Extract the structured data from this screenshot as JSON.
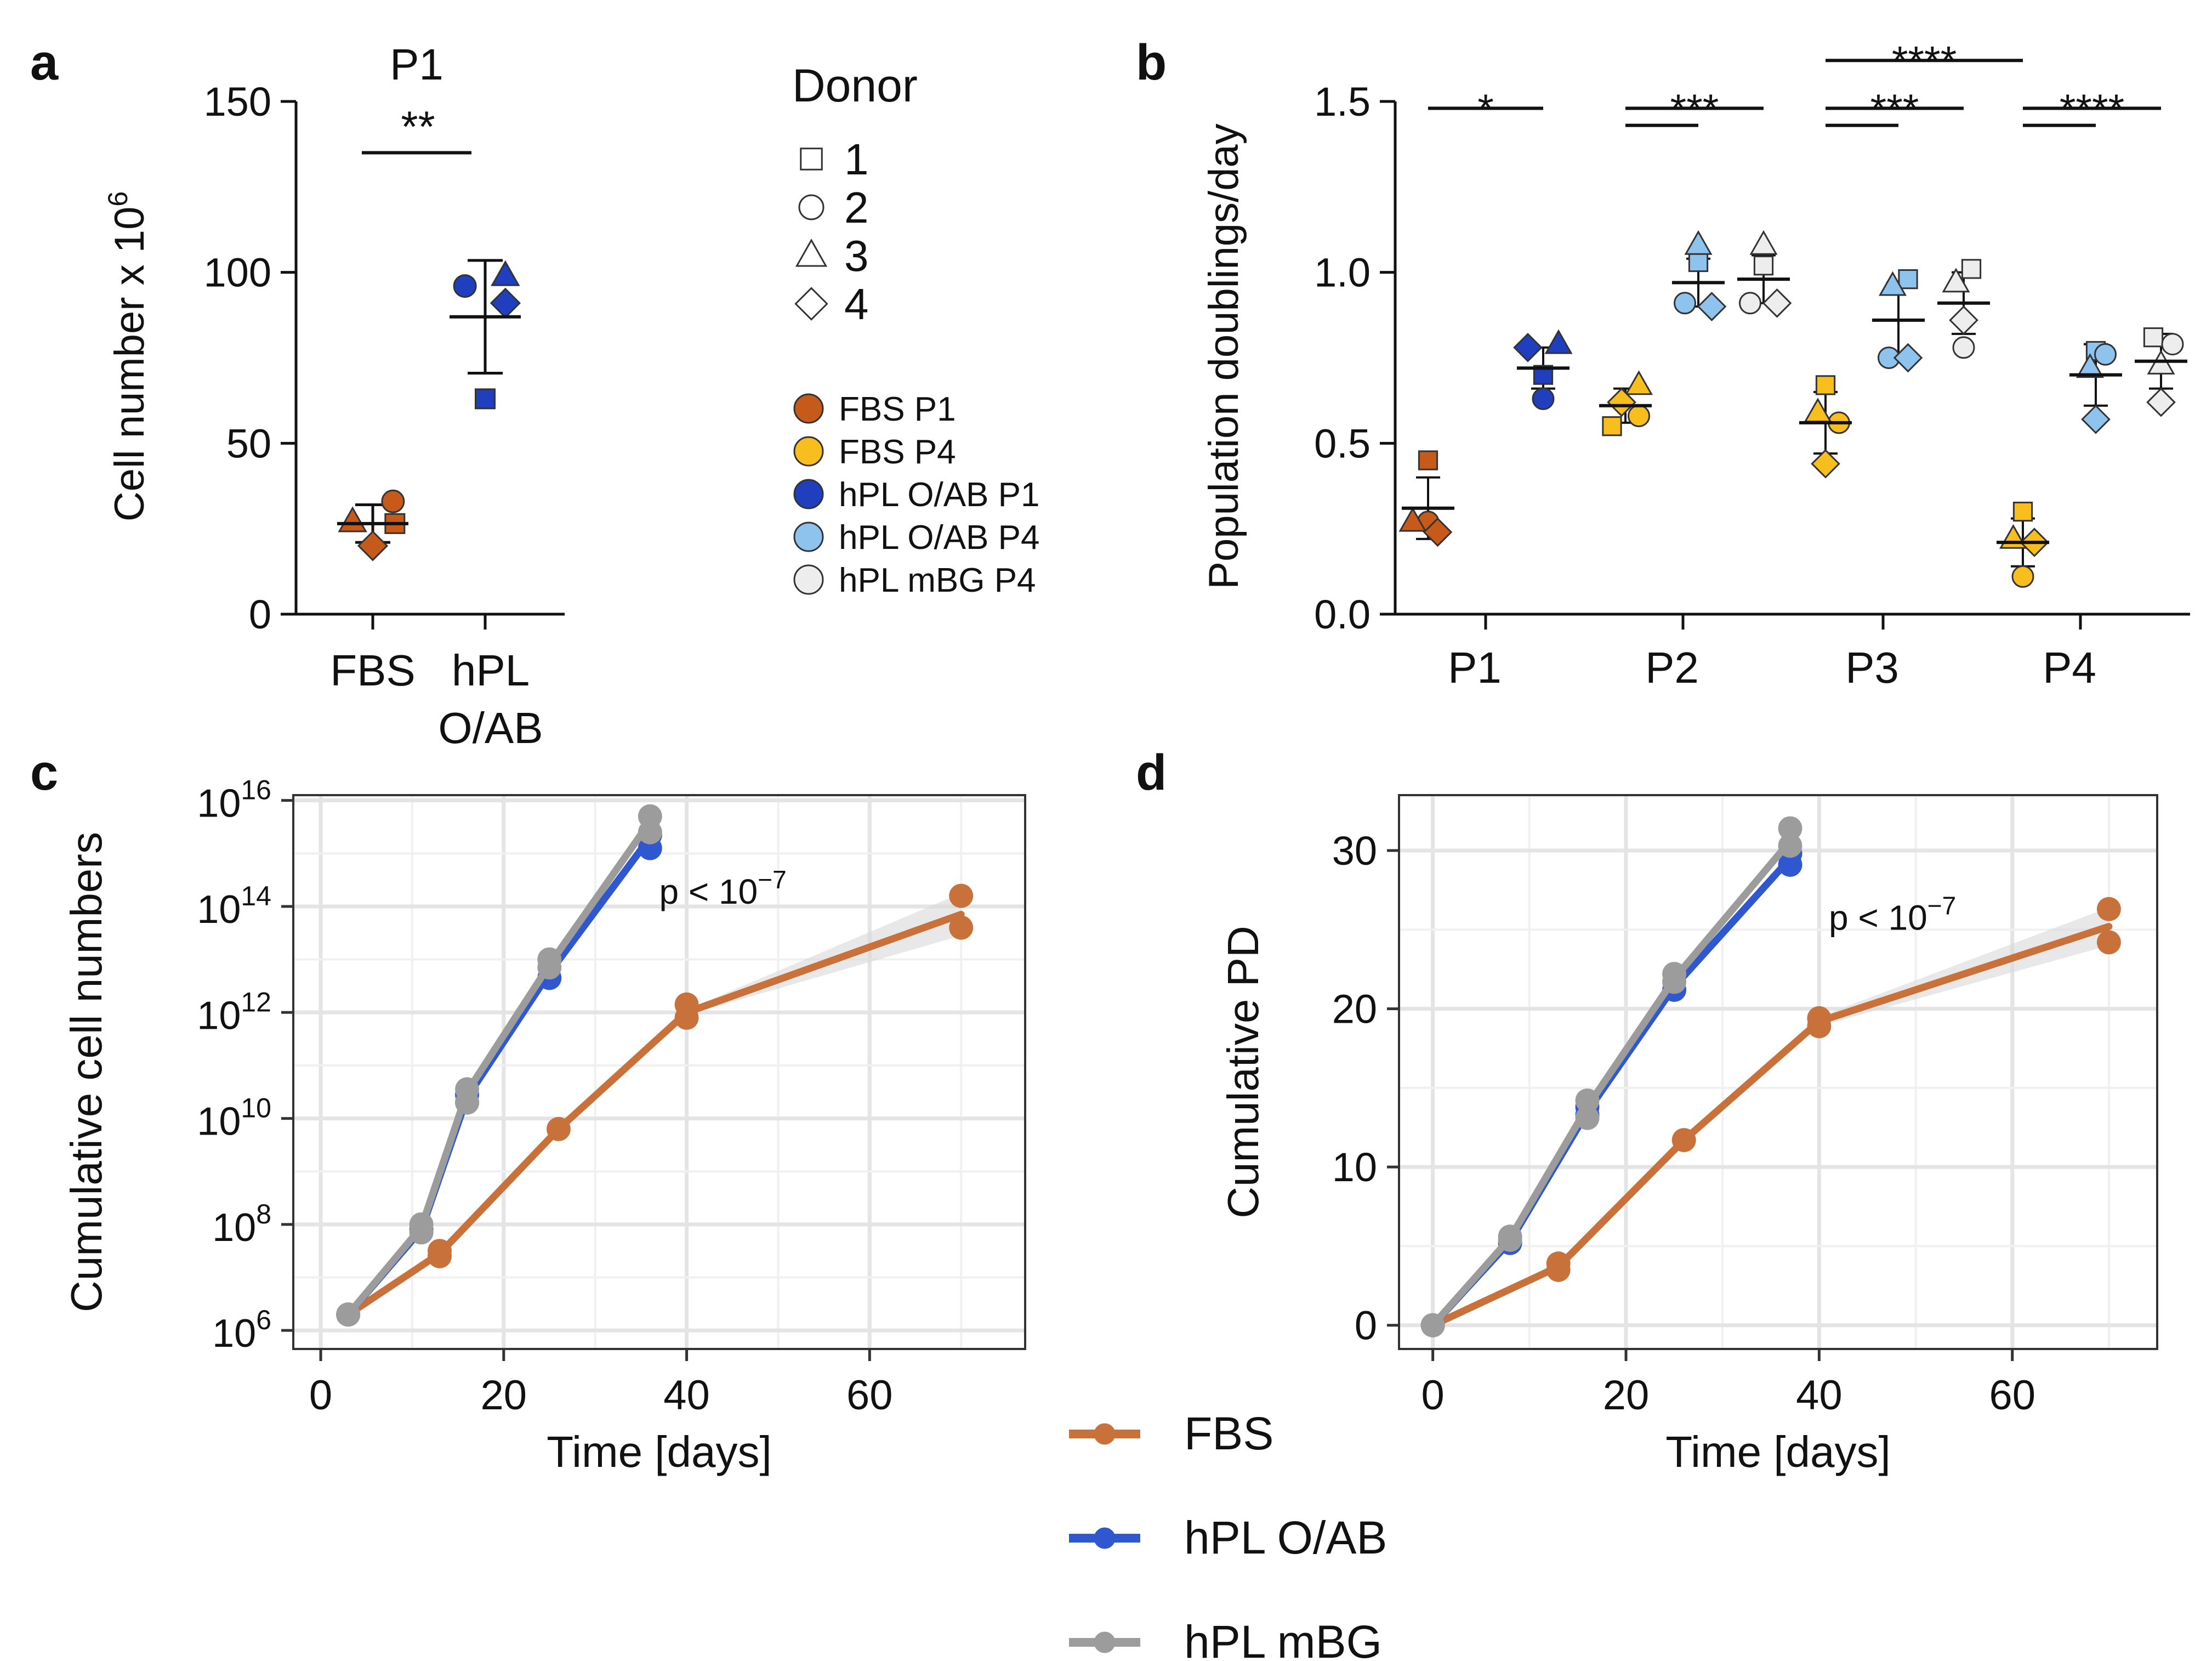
{
  "colors": {
    "fbs_p1": "#C55A1B",
    "fbs_p4": "#F7BE1D",
    "hpl_oab_p1": "#1F3FBF",
    "hpl_oab_p4": "#8EC3EE",
    "hpl_mbg_p4": "#EDEDED",
    "fbs_line": "#C8713A",
    "oab_line": "#2F58D0",
    "mbg_line": "#9C9C9C"
  },
  "panels": {
    "a": "a",
    "b": "b",
    "c": "c",
    "d": "d"
  },
  "donor_legend": {
    "title": "Donor",
    "items": [
      {
        "label": "1",
        "shape": "square"
      },
      {
        "label": "2",
        "shape": "circle"
      },
      {
        "label": "3",
        "shape": "triangle"
      },
      {
        "label": "4",
        "shape": "diamond"
      }
    ]
  },
  "group_legend": {
    "items": [
      {
        "label": "FBS P1",
        "color": "#C55A1B"
      },
      {
        "label": "FBS P4",
        "color": "#F7BE1D"
      },
      {
        "label": "hPL O/AB P1",
        "color": "#1F3FBF"
      },
      {
        "label": "hPL O/AB P4",
        "color": "#8EC3EE"
      },
      {
        "label": "hPL mBG P4",
        "color": "#EDEDED"
      }
    ]
  },
  "line_legend": {
    "items": [
      {
        "label": "FBS",
        "color": "#C8713A"
      },
      {
        "label": "hPL O/AB",
        "color": "#2F58D0"
      },
      {
        "label": "hPL mBG",
        "color": "#9C9C9C"
      }
    ]
  },
  "chart_data": [
    {
      "panel": "a",
      "type": "scatter",
      "title": "P1",
      "ylabel": "Cell number x 10",
      "ylabel_sup": "6",
      "ylim": [
        0,
        150
      ],
      "yticks": [
        0,
        50,
        100,
        150
      ],
      "categories": [
        "FBS",
        "hPL O/AB"
      ],
      "category_labels": [
        [
          "FBS"
        ],
        [
          "hPL",
          "O/AB"
        ]
      ],
      "groups": [
        {
          "name": "FBS",
          "color": "#C55A1B",
          "mean": 26.5,
          "sd": 5.5,
          "points": [
            {
              "donor": 1,
              "shape": "square",
              "value": 26.5,
              "offset": 0.35
            },
            {
              "donor": 2,
              "shape": "circle",
              "value": 33.0,
              "offset": 0.32
            },
            {
              "donor": 3,
              "shape": "triangle",
              "value": 27.0,
              "offset": -0.32
            },
            {
              "donor": 4,
              "shape": "diamond",
              "value": 20.0,
              "offset": 0.0
            }
          ]
        },
        {
          "name": "hPL O/AB",
          "color": "#1F3FBF",
          "mean": 87.0,
          "sd": 16.5,
          "points": [
            {
              "donor": 1,
              "shape": "square",
              "value": 63.0,
              "offset": 0.0
            },
            {
              "donor": 2,
              "shape": "circle",
              "value": 96.0,
              "offset": -0.32
            },
            {
              "donor": 3,
              "shape": "triangle",
              "value": 99.0,
              "offset": 0.32
            },
            {
              "donor": 4,
              "shape": "diamond",
              "value": 91.0,
              "offset": 0.32
            }
          ]
        }
      ],
      "significance": [
        {
          "from": 0,
          "to": 1,
          "label": "**",
          "y": 135
        }
      ]
    },
    {
      "panel": "b",
      "type": "scatter",
      "ylabel": "Population doublings/day",
      "ylim": [
        0.0,
        1.5
      ],
      "yticks": [
        "0.0",
        "0.5",
        "1.0",
        "1.5"
      ],
      "categories": [
        "P1",
        "P2",
        "P3",
        "P4"
      ],
      "groups": [
        {
          "name": "FBS P1",
          "cat": 0,
          "pos": -0.3,
          "color": "#C55A1B",
          "mean": 0.31,
          "sd": 0.09,
          "points": [
            [
              0.45,
              "square",
              0
            ],
            [
              0.27,
              "circle",
              0
            ],
            [
              0.27,
              "triangle",
              -0.08
            ],
            [
              0.24,
              "diamond",
              0.05
            ]
          ]
        },
        {
          "name": "hPL O/AB P1",
          "cat": 0,
          "pos": 0.3,
          "color": "#1F3FBF",
          "mean": 0.72,
          "sd": 0.06,
          "points": [
            [
              0.7,
              "square",
              0
            ],
            [
              0.63,
              "circle",
              0
            ],
            [
              0.79,
              "triangle",
              0.08
            ],
            [
              0.78,
              "diamond",
              -0.08
            ]
          ]
        },
        {
          "name": "FBS P4",
          "cat": 1,
          "pos": -0.3,
          "color": "#F7BE1D",
          "mean": 0.61,
          "sd": 0.05,
          "points": [
            [
              0.55,
              "square",
              -0.07
            ],
            [
              0.58,
              "circle",
              0.07
            ],
            [
              0.67,
              "triangle",
              0.07
            ],
            [
              0.62,
              "diamond",
              -0.02
            ]
          ]
        },
        {
          "name": "hPL O/AB P4",
          "cat": 1,
          "pos": 0.08,
          "color": "#8EC3EE",
          "mean": 0.97,
          "sd": 0.07,
          "points": [
            [
              1.03,
              "square",
              0
            ],
            [
              0.91,
              "circle",
              -0.07
            ],
            [
              1.08,
              "triangle",
              0
            ],
            [
              0.9,
              "diamond",
              0.07
            ]
          ]
        },
        {
          "name": "hPL mBG P4",
          "cat": 1,
          "pos": 0.42,
          "color": "#EDEDED",
          "mean": 0.98,
          "sd": 0.07,
          "points": [
            [
              1.02,
              "square",
              0
            ],
            [
              0.91,
              "circle",
              -0.07
            ],
            [
              1.08,
              "triangle",
              0
            ],
            [
              0.91,
              "diamond",
              0.07
            ]
          ]
        },
        {
          "name": "FBS P4",
          "cat": 2,
          "pos": -0.3,
          "color": "#F7BE1D",
          "mean": 0.56,
          "sd": 0.09,
          "points": [
            [
              0.67,
              "square",
              0
            ],
            [
              0.56,
              "circle",
              0.07
            ],
            [
              0.59,
              "triangle",
              -0.04
            ],
            [
              0.44,
              "diamond",
              0
            ]
          ]
        },
        {
          "name": "hPL O/AB P4",
          "cat": 2,
          "pos": 0.08,
          "color": "#8EC3EE",
          "mean": 0.86,
          "sd": 0.11,
          "points": [
            [
              0.98,
              "square",
              0.05
            ],
            [
              0.75,
              "circle",
              -0.05
            ],
            [
              0.96,
              "triangle",
              -0.03
            ],
            [
              0.75,
              "diamond",
              0.05
            ]
          ]
        },
        {
          "name": "hPL mBG P4",
          "cat": 2,
          "pos": 0.42,
          "color": "#EDEDED",
          "mean": 0.91,
          "sd": 0.09,
          "points": [
            [
              1.01,
              "square",
              0.04
            ],
            [
              0.78,
              "circle",
              0
            ],
            [
              0.97,
              "triangle",
              -0.04
            ],
            [
              0.86,
              "diamond",
              0
            ]
          ]
        },
        {
          "name": "FBS P4",
          "cat": 3,
          "pos": -0.3,
          "color": "#F7BE1D",
          "mean": 0.21,
          "sd": 0.07,
          "points": [
            [
              0.3,
              "square",
              0
            ],
            [
              0.11,
              "circle",
              0
            ],
            [
              0.22,
              "triangle",
              -0.05
            ],
            [
              0.21,
              "diamond",
              0.06
            ]
          ]
        },
        {
          "name": "hPL O/AB P4",
          "cat": 3,
          "pos": 0.08,
          "color": "#8EC3EE",
          "mean": 0.7,
          "sd": 0.09,
          "points": [
            [
              0.77,
              "square",
              0
            ],
            [
              0.76,
              "circle",
              0.05
            ],
            [
              0.72,
              "triangle",
              -0.03
            ],
            [
              0.57,
              "diamond",
              0
            ]
          ]
        },
        {
          "name": "hPL mBG P4",
          "cat": 3,
          "pos": 0.42,
          "color": "#EDEDED",
          "mean": 0.74,
          "sd": 0.08,
          "points": [
            [
              0.81,
              "square",
              -0.04
            ],
            [
              0.79,
              "circle",
              0.06
            ],
            [
              0.73,
              "triangle",
              0
            ],
            [
              0.62,
              "diamond",
              0
            ]
          ]
        }
      ],
      "significance": [
        {
          "label": "*",
          "cat": 0,
          "y": 1.48,
          "text_y": 1.5,
          "lines": [
            {
              "from": -0.3,
              "to": 0.3,
              "y": 1.48
            }
          ]
        },
        {
          "label": "***",
          "cat": 1,
          "text_y": 1.5,
          "lines": [
            {
              "from": -0.3,
              "to": 0.42,
              "y": 1.48
            },
            {
              "from": -0.3,
              "to": 0.08,
              "y": 1.43
            }
          ]
        },
        {
          "label": "***",
          "cat": 2,
          "text_y": 1.5,
          "lines": [
            {
              "from": -0.3,
              "to": 0.42,
              "y": 1.48
            },
            {
              "from": -0.3,
              "to": 0.08,
              "y": 1.43
            }
          ]
        },
        {
          "label": "****",
          "cat": 3,
          "text_y": 1.5,
          "lines": [
            {
              "from": -0.3,
              "to": 0.42,
              "y": 1.48
            },
            {
              "from": -0.3,
              "to": 0.08,
              "y": 1.43
            }
          ]
        },
        {
          "label": "****",
          "cat": 2.5,
          "text_y": 1.64,
          "lines": [
            {
              "from": 1.7,
              "to": 2.7,
              "y": 1.62,
              "absolute": true
            }
          ]
        }
      ]
    },
    {
      "panel": "c",
      "type": "line",
      "xlabel": "Time [days]",
      "ylabel": "Cumulative cell numbers",
      "xlim": [
        -3,
        77
      ],
      "xticks": [
        0,
        20,
        40,
        60
      ],
      "ylim_log10": [
        5.65,
        16.1
      ],
      "yticks_log10": [
        6,
        8,
        10,
        12,
        14,
        16
      ],
      "ytick_base": "10",
      "annotation": {
        "text": "p < 10",
        "sup": "−7",
        "x": 37,
        "y_log10": 14.05
      },
      "series": [
        {
          "name": "FBS",
          "color": "#C8713A",
          "x": [
            3,
            13,
            26,
            40,
            70
          ],
          "y_log10": [
            6.3,
            7.45,
            9.8,
            12.0,
            13.85
          ],
          "points": [
            [
              3,
              6.3
            ],
            [
              13,
              7.4
            ],
            [
              13,
              7.5
            ],
            [
              26,
              9.8
            ],
            [
              40,
              11.9
            ],
            [
              40,
              12.15
            ],
            [
              70,
              13.6
            ],
            [
              70,
              14.2
            ]
          ],
          "ribbon_x": [
            40,
            70
          ],
          "ribbon_lo": [
            11.95,
            13.45
          ],
          "ribbon_hi": [
            12.05,
            14.25
          ]
        },
        {
          "name": "hPL O/AB",
          "color": "#2F58D0",
          "x": [
            3,
            11,
            16,
            25,
            36
          ],
          "y_log10": [
            6.3,
            7.9,
            10.4,
            12.75,
            15.3
          ],
          "points": [
            [
              3,
              6.3
            ],
            [
              11,
              7.9
            ],
            [
              16,
              10.3
            ],
            [
              16,
              10.45
            ],
            [
              25,
              12.65
            ],
            [
              36,
              15.1
            ],
            [
              36,
              15.35
            ]
          ]
        },
        {
          "name": "hPL mBG",
          "color": "#9C9C9C",
          "x": [
            3,
            11,
            16,
            25,
            36
          ],
          "y_log10": [
            6.3,
            7.95,
            10.5,
            12.9,
            15.6
          ],
          "points": [
            [
              3,
              6.3
            ],
            [
              11,
              7.85
            ],
            [
              11,
              8.0
            ],
            [
              16,
              10.3
            ],
            [
              16,
              10.55
            ],
            [
              25,
              12.85
            ],
            [
              25,
              13.0
            ],
            [
              36,
              15.4
            ],
            [
              36,
              15.7
            ]
          ]
        }
      ]
    },
    {
      "panel": "d",
      "type": "line",
      "xlabel": "Time [days]",
      "ylabel": "Cumulative PD",
      "xlim": [
        -3.5,
        75
      ],
      "xticks": [
        0,
        20,
        40,
        60
      ],
      "ylim": [
        -1.5,
        33.5
      ],
      "yticks": [
        0,
        10,
        20,
        30
      ],
      "annotation": {
        "text": "p < 10",
        "sup": "−7",
        "x": 41,
        "y": 25.0
      },
      "series": [
        {
          "name": "FBS",
          "color": "#C8713A",
          "x": [
            0,
            13,
            26,
            40,
            70
          ],
          "y": [
            0,
            3.7,
            11.7,
            19.2,
            25.2
          ],
          "points": [
            [
              0,
              0
            ],
            [
              13,
              3.5
            ],
            [
              13,
              3.9
            ],
            [
              26,
              11.7
            ],
            [
              40,
              18.9
            ],
            [
              40,
              19.4
            ],
            [
              70,
              24.2
            ],
            [
              70,
              26.3
            ]
          ],
          "ribbon_x": [
            40,
            70
          ],
          "ribbon_lo": [
            18.9,
            24.0
          ],
          "ribbon_hi": [
            19.5,
            26.4
          ]
        },
        {
          "name": "hPL O/AB",
          "color": "#2F58D0",
          "x": [
            0,
            8,
            16,
            25,
            37
          ],
          "y": [
            0,
            5.3,
            13.5,
            21.4,
            29.5
          ],
          "points": [
            [
              0,
              0
            ],
            [
              8,
              5.2
            ],
            [
              16,
              13.3
            ],
            [
              16,
              13.8
            ],
            [
              25,
              21.2
            ],
            [
              37,
              29.1
            ],
            [
              37,
              29.8
            ]
          ]
        },
        {
          "name": "hPL mBG",
          "color": "#9C9C9C",
          "x": [
            0,
            8,
            16,
            25,
            37
          ],
          "y": [
            0,
            5.5,
            13.8,
            21.9,
            30.6
          ],
          "points": [
            [
              0,
              0
            ],
            [
              8,
              5.4
            ],
            [
              8,
              5.6
            ],
            [
              16,
              13.1
            ],
            [
              16,
              14.2
            ],
            [
              25,
              21.7
            ],
            [
              25,
              22.2
            ],
            [
              37,
              30.3
            ],
            [
              37,
              31.4
            ]
          ]
        }
      ]
    }
  ]
}
